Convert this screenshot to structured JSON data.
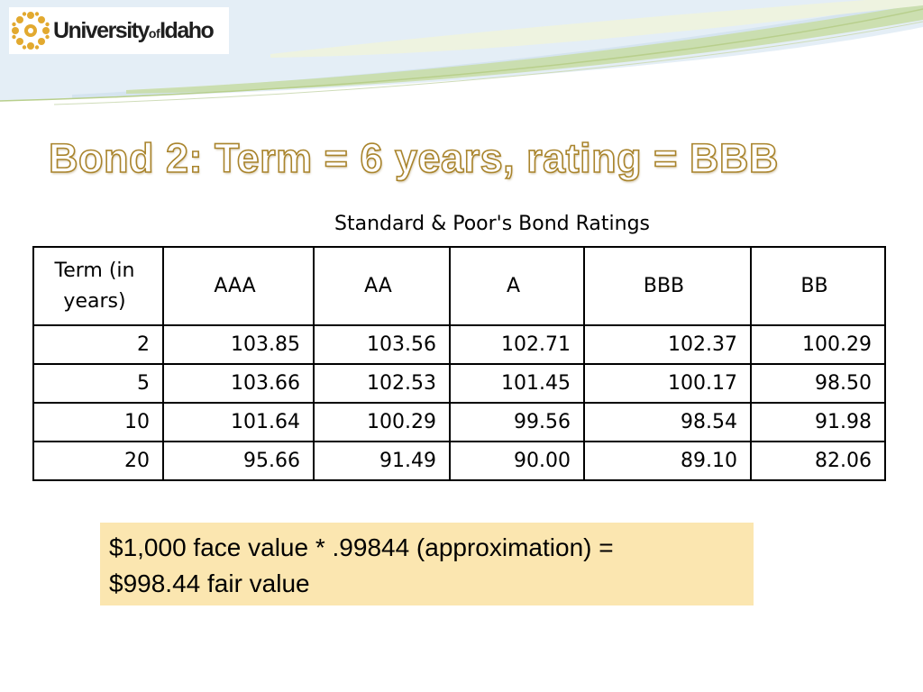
{
  "logo": {
    "name_part1": "University",
    "name_part2": "of",
    "name_part3": "Idaho"
  },
  "title": "Bond 2: Term = 6 years, rating = BBB",
  "table": {
    "caption": "Standard & Poor's Bond Ratings",
    "header": [
      "Term (in years)",
      "AAA",
      "AA",
      "A",
      "BBB",
      "BB"
    ],
    "rows": [
      [
        "2",
        "103.85",
        "103.56",
        "102.71",
        "102.37",
        "100.29"
      ],
      [
        "5",
        "103.66",
        "102.53",
        "101.45",
        "100.17",
        "98.50"
      ],
      [
        "10",
        "101.64",
        "100.29",
        "99.56",
        "98.54",
        "91.98"
      ],
      [
        "20",
        "95.66",
        "91.49",
        "90.00",
        "89.10",
        "82.06"
      ]
    ]
  },
  "note": {
    "line1": "$1,000 face value * .99844 (approximation) =",
    "line2": "$998.44 fair value"
  },
  "colors": {
    "title_outline": "#a9842c",
    "note_background": "#fbe6b0",
    "accent_green": "#c5d8a4"
  }
}
